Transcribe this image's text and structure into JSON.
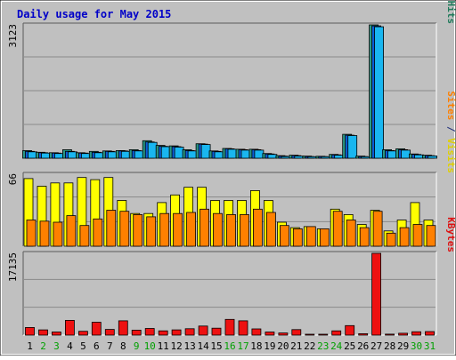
{
  "chart_data": {
    "type": "bar",
    "title": "Daily usage for May 2015",
    "categories": [
      "1",
      "2",
      "3",
      "4",
      "5",
      "6",
      "7",
      "8",
      "9",
      "10",
      "11",
      "12",
      "13",
      "14",
      "15",
      "16",
      "17",
      "18",
      "19",
      "20",
      "21",
      "22",
      "23",
      "24",
      "25",
      "26",
      "27",
      "28",
      "29",
      "30",
      "31"
    ],
    "weekend_days": [
      "2",
      "3",
      "9",
      "10",
      "16",
      "17",
      "23",
      "24",
      "30",
      "31"
    ],
    "grid": true,
    "legend": "right",
    "panels": [
      {
        "id": "hits",
        "max_label": "3123",
        "max": 3123,
        "legend": [
          {
            "text": "Pages",
            "color": "#00a5e0"
          },
          {
            "text": " / ",
            "color": "#1f2d7a"
          },
          {
            "text": "Files",
            "color": "#0050d0"
          },
          {
            "text": " / ",
            "color": "#1f2d7a"
          },
          {
            "text": "Hits",
            "color": "#1f7a5a"
          }
        ],
        "series": [
          {
            "name": "Hits",
            "color": "#2a9a86",
            "values": [
              180,
              140,
              130,
              200,
              130,
              160,
              170,
              180,
              200,
              410,
              300,
              290,
              200,
              340,
              170,
              230,
              210,
              210,
              110,
              60,
              70,
              50,
              45,
              90,
              560,
              50,
              3123,
              200,
              220,
              100,
              70
            ]
          },
          {
            "name": "Files",
            "color": "#0b5ed7",
            "values": [
              160,
              130,
              120,
              160,
              120,
              140,
              160,
              170,
              180,
              380,
              280,
              270,
              180,
              330,
              160,
              220,
              200,
              200,
              100,
              50,
              60,
              40,
              40,
              80,
              540,
              40,
              3100,
              180,
              200,
              90,
              60
            ]
          },
          {
            "name": "Pages",
            "color": "#19b6f0",
            "values": [
              150,
              120,
              110,
              150,
              110,
              130,
              150,
              160,
              170,
              370,
              270,
              260,
              170,
              320,
              150,
              210,
              190,
              190,
              90,
              40,
              50,
              35,
              35,
              70,
              530,
              35,
              3080,
              170,
              190,
              80,
              55
            ]
          }
        ]
      },
      {
        "id": "visits",
        "max_label": "66",
        "max": 66,
        "legend": [
          {
            "text": "Sites",
            "color": "#ff8000"
          },
          {
            "text": " / ",
            "color": "#1f2d7a"
          },
          {
            "text": "Visits",
            "color": "#e0d000"
          }
        ],
        "series": [
          {
            "name": "Visits",
            "color": "#ffff00",
            "values": [
              62,
              55,
              58,
              58,
              63,
              61,
              63,
              42,
              30,
              30,
              40,
              47,
              54,
              54,
              42,
              42,
              42,
              51,
              42,
              22,
              17,
              18,
              16,
              34,
              29,
              20,
              33,
              14,
              24,
              40,
              24
            ]
          },
          {
            "name": "Sites",
            "color": "#ff8000",
            "values": [
              24,
              23,
              22,
              28,
              19,
              25,
              33,
              32,
              29,
              27,
              30,
              30,
              31,
              34,
              30,
              29,
              29,
              34,
              31,
              19,
              16,
              18,
              16,
              32,
              24,
              17,
              32,
              12,
              17,
              20,
              19
            ]
          }
        ]
      },
      {
        "id": "kbytes",
        "max_label": "17135",
        "max": 17135,
        "legend": [
          {
            "text": "KBytes",
            "color": "#dd1111"
          }
        ],
        "series": [
          {
            "name": "KBytes",
            "color": "#ee1111",
            "values": [
              1600,
              1100,
              650,
              3100,
              800,
              2700,
              1200,
              3000,
              1050,
              1400,
              900,
              1100,
              1350,
              1900,
              1450,
              3300,
              3000,
              1300,
              650,
              450,
              1150,
              100,
              100,
              900,
              2000,
              300,
              17135,
              200,
              400,
              700,
              750
            ]
          }
        ]
      }
    ]
  }
}
